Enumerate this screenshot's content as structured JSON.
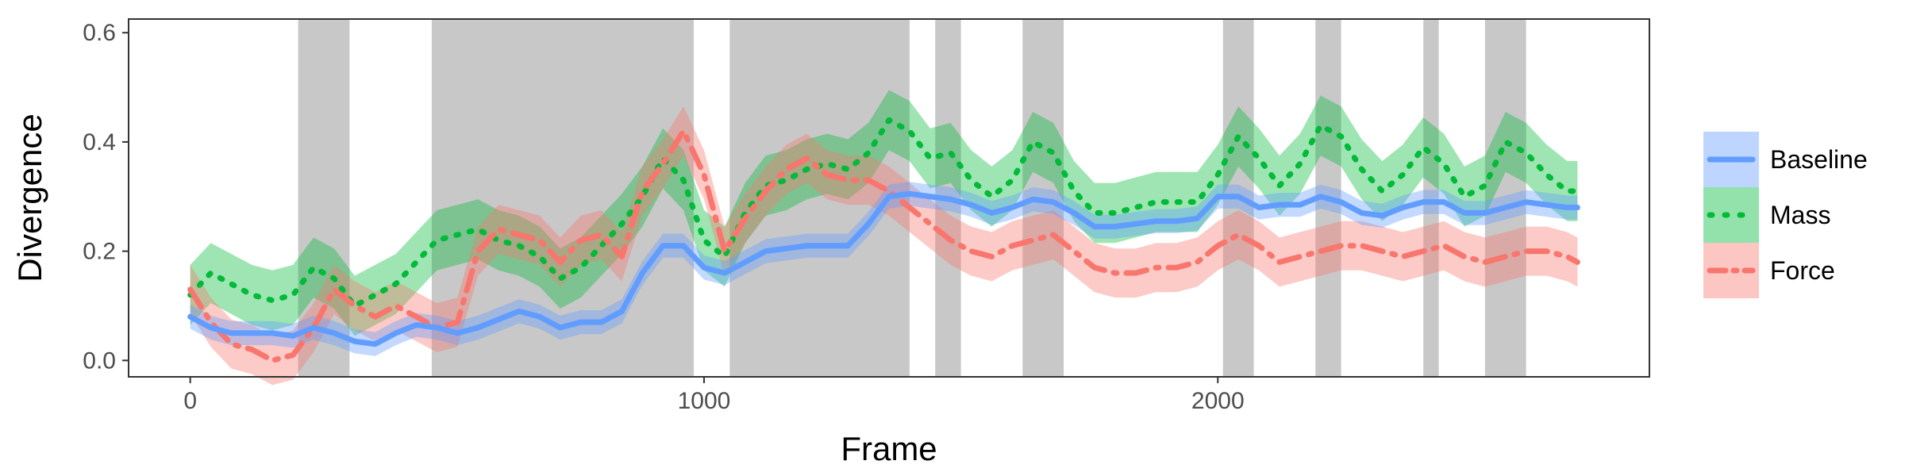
{
  "chart_data": {
    "type": "line",
    "xlabel": "Frame",
    "ylabel": "Divergence",
    "xlim": [
      -120,
      2840
    ],
    "ylim": [
      -0.03,
      0.625
    ],
    "x_ticks": [
      0,
      1000,
      2000
    ],
    "x_tick_labels": [
      "0",
      "1000",
      "2000"
    ],
    "y_ticks": [
      0.0,
      0.2,
      0.4,
      0.6
    ],
    "y_tick_labels": [
      "0.0",
      "0.2",
      "0.4",
      "0.6"
    ],
    "grid": false,
    "legend_position": "right",
    "shaded_frame_intervals": [
      [
        210,
        310
      ],
      [
        470,
        980
      ],
      [
        1050,
        1400
      ],
      [
        1450,
        1500
      ],
      [
        1620,
        1700
      ],
      [
        2010,
        2070
      ],
      [
        2190,
        2240
      ],
      [
        2400,
        2430
      ],
      [
        2520,
        2600
      ]
    ],
    "shade_color": "#c8c8c8",
    "x": [
      0,
      40,
      80,
      120,
      160,
      200,
      240,
      280,
      320,
      360,
      400,
      440,
      480,
      520,
      560,
      600,
      640,
      680,
      720,
      760,
      800,
      840,
      880,
      920,
      960,
      1000,
      1040,
      1080,
      1120,
      1160,
      1200,
      1240,
      1280,
      1320,
      1360,
      1400,
      1440,
      1480,
      1520,
      1560,
      1600,
      1640,
      1680,
      1720,
      1760,
      1800,
      1840,
      1880,
      1920,
      1960,
      2000,
      2040,
      2080,
      2120,
      2160,
      2200,
      2240,
      2280,
      2320,
      2360,
      2400,
      2440,
      2480,
      2520,
      2560,
      2600,
      2640,
      2680,
      2700
    ],
    "series": [
      {
        "name": "Baseline",
        "color": "#619cff",
        "line_style": "solid",
        "values": [
          0.08,
          0.06,
          0.05,
          0.05,
          0.05,
          0.045,
          0.06,
          0.05,
          0.035,
          0.03,
          0.05,
          0.065,
          0.06,
          0.05,
          0.06,
          0.075,
          0.09,
          0.08,
          0.06,
          0.07,
          0.07,
          0.09,
          0.16,
          0.21,
          0.21,
          0.17,
          0.16,
          0.18,
          0.2,
          0.205,
          0.21,
          0.21,
          0.21,
          0.25,
          0.3,
          0.305,
          0.3,
          0.295,
          0.285,
          0.27,
          0.28,
          0.295,
          0.29,
          0.27,
          0.245,
          0.245,
          0.25,
          0.255,
          0.255,
          0.26,
          0.3,
          0.3,
          0.28,
          0.285,
          0.285,
          0.3,
          0.29,
          0.27,
          0.265,
          0.28,
          0.29,
          0.29,
          0.27,
          0.27,
          0.28,
          0.29,
          0.285,
          0.28,
          0.28
        ],
        "band": 0.022
      },
      {
        "name": "Mass",
        "color": "#00ba38",
        "line_style": "dotted",
        "values": [
          0.12,
          0.16,
          0.14,
          0.12,
          0.11,
          0.12,
          0.17,
          0.15,
          0.1,
          0.12,
          0.14,
          0.18,
          0.22,
          0.23,
          0.24,
          0.22,
          0.21,
          0.19,
          0.15,
          0.17,
          0.21,
          0.25,
          0.3,
          0.37,
          0.33,
          0.22,
          0.19,
          0.27,
          0.32,
          0.33,
          0.35,
          0.36,
          0.35,
          0.38,
          0.44,
          0.42,
          0.37,
          0.38,
          0.33,
          0.3,
          0.33,
          0.4,
          0.38,
          0.31,
          0.27,
          0.27,
          0.28,
          0.29,
          0.29,
          0.29,
          0.34,
          0.41,
          0.37,
          0.32,
          0.36,
          0.43,
          0.41,
          0.35,
          0.31,
          0.34,
          0.39,
          0.36,
          0.3,
          0.32,
          0.4,
          0.38,
          0.34,
          0.31,
          0.31
        ],
        "band": 0.055
      },
      {
        "name": "Force",
        "color": "#f8766d",
        "line_style": "dashdot",
        "values": [
          0.13,
          0.07,
          0.03,
          0.02,
          0.0,
          0.01,
          0.06,
          0.13,
          0.1,
          0.08,
          0.1,
          0.08,
          0.06,
          0.07,
          0.2,
          0.24,
          0.23,
          0.22,
          0.18,
          0.22,
          0.23,
          0.19,
          0.31,
          0.36,
          0.42,
          0.34,
          0.2,
          0.26,
          0.31,
          0.35,
          0.37,
          0.34,
          0.33,
          0.33,
          0.31,
          0.28,
          0.25,
          0.22,
          0.2,
          0.19,
          0.21,
          0.22,
          0.23,
          0.2,
          0.17,
          0.16,
          0.16,
          0.17,
          0.17,
          0.18,
          0.21,
          0.23,
          0.21,
          0.18,
          0.19,
          0.2,
          0.21,
          0.21,
          0.2,
          0.19,
          0.2,
          0.21,
          0.19,
          0.18,
          0.19,
          0.2,
          0.2,
          0.19,
          0.18
        ],
        "band": 0.045
      }
    ]
  }
}
